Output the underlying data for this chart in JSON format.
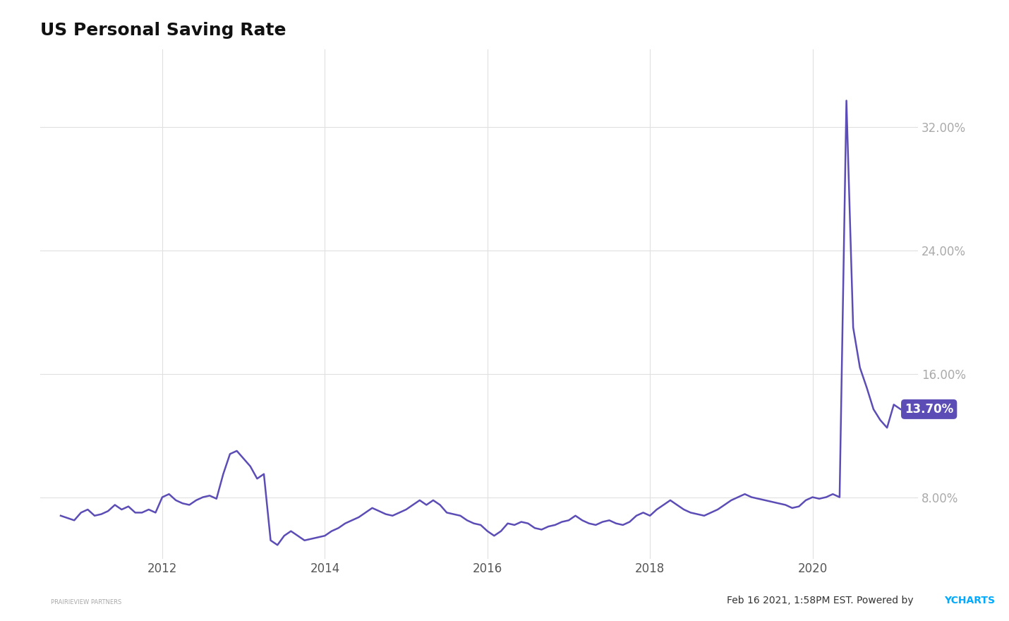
{
  "title": "US Personal Saving Rate",
  "line_color": "#5b4db5",
  "background_color": "#ffffff",
  "plot_bg_color": "#ffffff",
  "grid_color": "#e0e0e0",
  "ylabel_color": "#aaaaaa",
  "yticks": [
    8.0,
    16.0,
    24.0,
    32.0
  ],
  "ytick_labels": [
    "8.00%",
    "16.00%",
    "24.00%",
    "32.00%"
  ],
  "xlim_start": 2010.5,
  "xlim_end": 2021.3,
  "ylim_bottom": 4.0,
  "ylim_top": 37.0,
  "annotation_value": "13.70%",
  "annotation_bg": "#5b4db5",
  "annotation_text_color": "#ffffff",
  "footer_text": "Feb 16 2021, 1:58PM EST. Powered by ",
  "footer_ycharts": "YCHARTS",
  "ycharts_color": "#00aaff",
  "data": {
    "dates": [
      2010.75,
      2010.917,
      2011.0,
      2011.083,
      2011.167,
      2011.25,
      2011.333,
      2011.417,
      2011.5,
      2011.583,
      2011.667,
      2011.75,
      2011.833,
      2011.917,
      2012.0,
      2012.083,
      2012.167,
      2012.25,
      2012.333,
      2012.417,
      2012.5,
      2012.583,
      2012.667,
      2012.75,
      2012.833,
      2012.917,
      2013.0,
      2013.083,
      2013.167,
      2013.25,
      2013.333,
      2013.417,
      2013.5,
      2013.583,
      2013.667,
      2013.75,
      2013.833,
      2013.917,
      2014.0,
      2014.083,
      2014.167,
      2014.25,
      2014.333,
      2014.417,
      2014.5,
      2014.583,
      2014.667,
      2014.75,
      2014.833,
      2014.917,
      2015.0,
      2015.083,
      2015.167,
      2015.25,
      2015.333,
      2015.417,
      2015.5,
      2015.583,
      2015.667,
      2015.75,
      2015.833,
      2015.917,
      2016.0,
      2016.083,
      2016.167,
      2016.25,
      2016.333,
      2016.417,
      2016.5,
      2016.583,
      2016.667,
      2016.75,
      2016.833,
      2016.917,
      2017.0,
      2017.083,
      2017.167,
      2017.25,
      2017.333,
      2017.417,
      2017.5,
      2017.583,
      2017.667,
      2017.75,
      2017.833,
      2017.917,
      2018.0,
      2018.083,
      2018.167,
      2018.25,
      2018.333,
      2018.417,
      2018.5,
      2018.583,
      2018.667,
      2018.75,
      2018.833,
      2018.917,
      2019.0,
      2019.083,
      2019.167,
      2019.25,
      2019.333,
      2019.417,
      2019.5,
      2019.583,
      2019.667,
      2019.75,
      2019.833,
      2019.917,
      2020.0,
      2020.083,
      2020.167,
      2020.25,
      2020.333,
      2020.417,
      2020.5,
      2020.583,
      2020.667,
      2020.75,
      2020.833,
      2020.917,
      2021.0,
      2021.083
    ],
    "values": [
      6.8,
      6.5,
      7.0,
      7.2,
      6.8,
      6.9,
      7.1,
      7.5,
      7.2,
      7.4,
      7.0,
      7.0,
      7.2,
      7.0,
      8.0,
      8.2,
      7.8,
      7.6,
      7.5,
      7.8,
      8.0,
      8.1,
      7.9,
      9.5,
      10.8,
      11.0,
      10.5,
      10.0,
      9.2,
      9.5,
      5.2,
      4.9,
      5.5,
      5.8,
      5.5,
      5.2,
      5.3,
      5.4,
      5.5,
      5.8,
      6.0,
      6.3,
      6.5,
      6.7,
      7.0,
      7.3,
      7.1,
      6.9,
      6.8,
      7.0,
      7.2,
      7.5,
      7.8,
      7.5,
      7.8,
      7.5,
      7.0,
      6.9,
      6.8,
      6.5,
      6.3,
      6.2,
      5.8,
      5.5,
      5.8,
      6.3,
      6.2,
      6.4,
      6.3,
      6.0,
      5.9,
      6.1,
      6.2,
      6.4,
      6.5,
      6.8,
      6.5,
      6.3,
      6.2,
      6.4,
      6.5,
      6.3,
      6.2,
      6.4,
      6.8,
      7.0,
      6.8,
      7.2,
      7.5,
      7.8,
      7.5,
      7.2,
      7.0,
      6.9,
      6.8,
      7.0,
      7.2,
      7.5,
      7.8,
      8.0,
      8.2,
      8.0,
      7.9,
      7.8,
      7.7,
      7.6,
      7.5,
      7.3,
      7.4,
      7.8,
      8.0,
      7.9,
      8.0,
      8.2,
      8.0,
      33.7,
      19.0,
      16.4,
      15.1,
      13.7,
      13.0,
      12.5,
      14.0,
      13.7
    ]
  }
}
